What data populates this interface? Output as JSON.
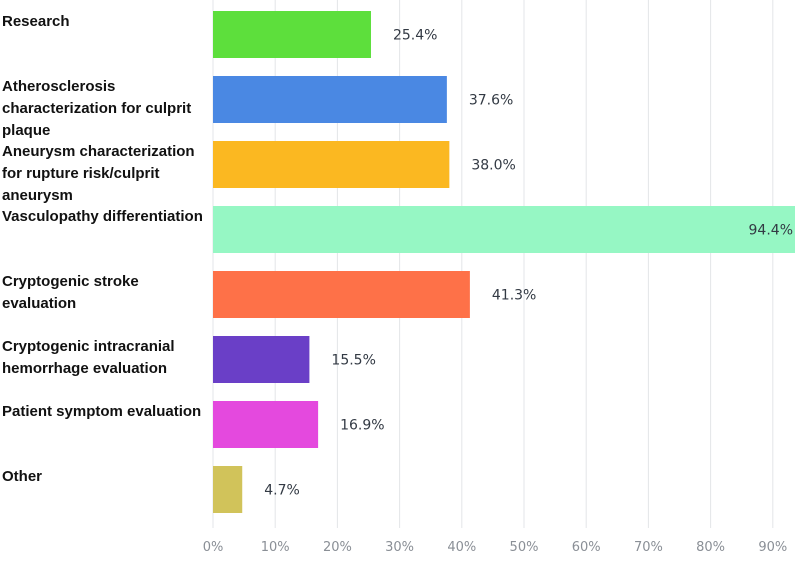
{
  "chart_data": {
    "type": "bar",
    "orientation": "horizontal",
    "categories": [
      [
        "Research"
      ],
      [
        "Atherosclerosis",
        "characterization for culprit",
        "plaque"
      ],
      [
        "Aneurysm characterization",
        "for rupture risk/culprit",
        "aneurysm"
      ],
      [
        "Vasculopathy differentiation"
      ],
      [
        "Cryptogenic stroke",
        "evaluation"
      ],
      [
        "Cryptogenic intracranial",
        "hemorrhage evaluation"
      ],
      [
        "Patient symptom evaluation"
      ],
      [
        "Other"
      ]
    ],
    "values": [
      25.4,
      37.6,
      38.0,
      94.4,
      41.3,
      15.5,
      16.9,
      4.7
    ],
    "value_labels": [
      "25.4%",
      "37.6%",
      "38.0%",
      "94.4%",
      "41.3%",
      "15.5%",
      "16.9%",
      "4.7%"
    ],
    "colors": [
      "#5ddf3c",
      "#4a88e3",
      "#fbb821",
      "#96f7c4",
      "#fe7148",
      "#6a3fc7",
      "#e449de",
      "#d1c35a"
    ],
    "xlim": [
      0,
      93
    ],
    "xticks": [
      0,
      10,
      20,
      30,
      40,
      50,
      60,
      70,
      80,
      90
    ],
    "xtick_labels": [
      "0%",
      "10%",
      "20%",
      "30%",
      "40%",
      "50%",
      "60%",
      "70%",
      "80%",
      "90%"
    ],
    "grid": true,
    "title": "",
    "xlabel": "",
    "ylabel": ""
  }
}
